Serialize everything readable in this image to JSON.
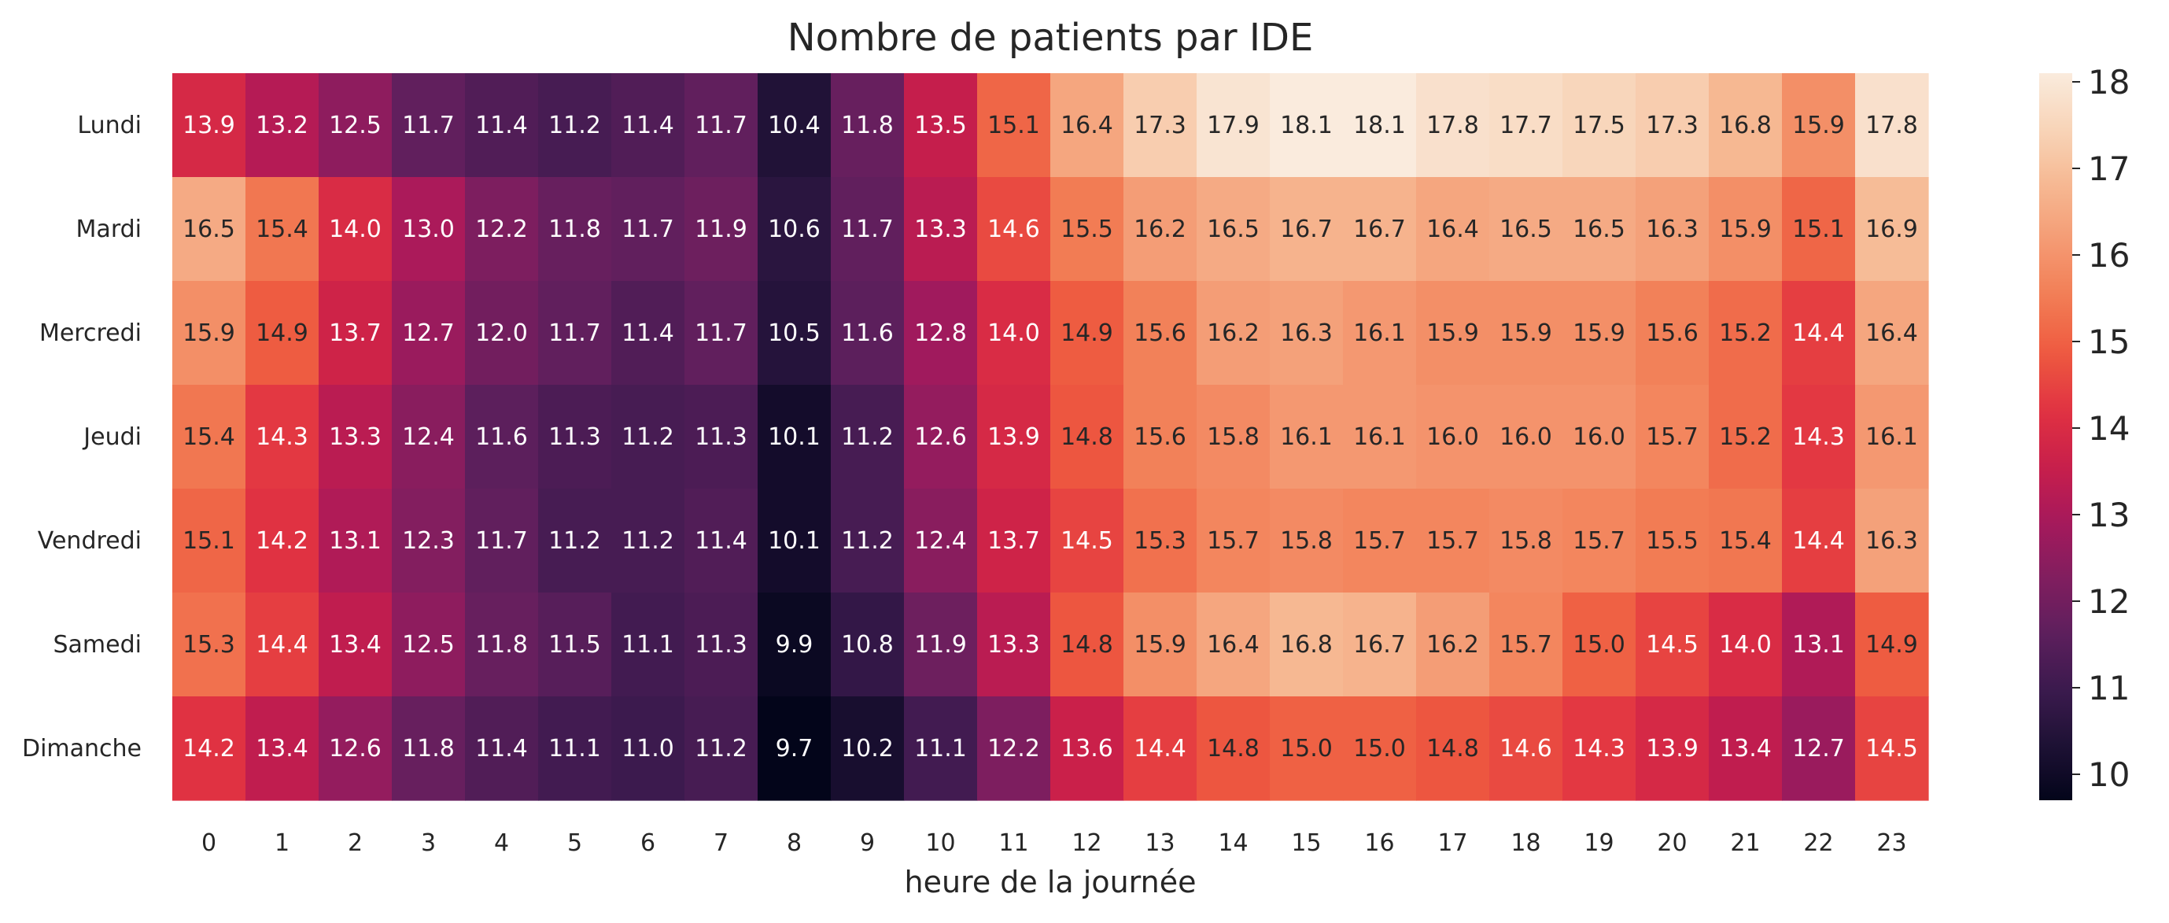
{
  "chart_data": {
    "type": "heatmap",
    "title": "Nombre de patients par IDE",
    "xlabel": "heure de la journée",
    "ylabel": "",
    "x": [
      "0",
      "1",
      "2",
      "3",
      "4",
      "5",
      "6",
      "7",
      "8",
      "9",
      "10",
      "11",
      "12",
      "13",
      "14",
      "15",
      "16",
      "17",
      "18",
      "19",
      "20",
      "21",
      "22",
      "23"
    ],
    "y": [
      "Lundi",
      "Mardi",
      "Mercredi",
      "Jeudi",
      "Vendredi",
      "Samedi",
      "Dimanche"
    ],
    "values": [
      [
        13.9,
        13.2,
        12.5,
        11.7,
        11.4,
        11.2,
        11.4,
        11.7,
        10.4,
        11.8,
        13.5,
        15.1,
        16.4,
        17.3,
        17.9,
        18.1,
        18.1,
        17.8,
        17.7,
        17.5,
        17.3,
        16.8,
        15.9,
        17.8
      ],
      [
        16.5,
        15.4,
        14.0,
        13.0,
        12.2,
        11.8,
        11.7,
        11.9,
        10.6,
        11.7,
        13.3,
        14.6,
        15.5,
        16.2,
        16.5,
        16.7,
        16.7,
        16.4,
        16.5,
        16.5,
        16.3,
        15.9,
        15.1,
        16.9
      ],
      [
        15.9,
        14.9,
        13.7,
        12.7,
        12.0,
        11.7,
        11.4,
        11.7,
        10.5,
        11.6,
        12.8,
        14.0,
        14.9,
        15.6,
        16.2,
        16.3,
        16.1,
        15.9,
        15.9,
        15.9,
        15.6,
        15.2,
        14.4,
        16.4
      ],
      [
        15.4,
        14.3,
        13.3,
        12.4,
        11.6,
        11.3,
        11.2,
        11.3,
        10.1,
        11.2,
        12.6,
        13.9,
        14.8,
        15.6,
        15.8,
        16.1,
        16.1,
        16.0,
        16.0,
        16.0,
        15.7,
        15.2,
        14.3,
        16.1
      ],
      [
        15.1,
        14.2,
        13.1,
        12.3,
        11.7,
        11.2,
        11.2,
        11.4,
        10.1,
        11.2,
        12.4,
        13.7,
        14.5,
        15.3,
        15.7,
        15.8,
        15.7,
        15.7,
        15.8,
        15.7,
        15.5,
        15.4,
        14.4,
        16.3
      ],
      [
        15.3,
        14.4,
        13.4,
        12.5,
        11.8,
        11.5,
        11.1,
        11.3,
        9.9,
        10.8,
        11.9,
        13.3,
        14.8,
        15.9,
        16.4,
        16.8,
        16.7,
        16.2,
        15.7,
        15.0,
        14.5,
        14.0,
        13.1,
        14.9
      ],
      [
        14.2,
        13.4,
        12.6,
        11.8,
        11.4,
        11.1,
        11.0,
        11.2,
        9.7,
        10.2,
        11.1,
        12.2,
        13.6,
        14.4,
        14.8,
        15.0,
        15.0,
        14.8,
        14.6,
        14.3,
        13.9,
        13.4,
        12.7,
        14.5
      ]
    ],
    "colorbar": {
      "vmin": 9.7,
      "vmax": 18.1,
      "ticks": [
        "10",
        "11",
        "12",
        "13",
        "14",
        "15",
        "16",
        "17",
        "18"
      ],
      "colormap": "rocket",
      "stops": [
        "#03051a",
        "#1e1135",
        "#3c1a4e",
        "#5e1f5d",
        "#821e5f",
        "#a7195c",
        "#c91f4a",
        "#e13342",
        "#ee5a40",
        "#f27d55",
        "#f49b74",
        "#f6b892",
        "#f8d4b8",
        "#faebdd"
      ]
    },
    "annotate": true,
    "grid": false,
    "legend": "colorbar-right"
  }
}
